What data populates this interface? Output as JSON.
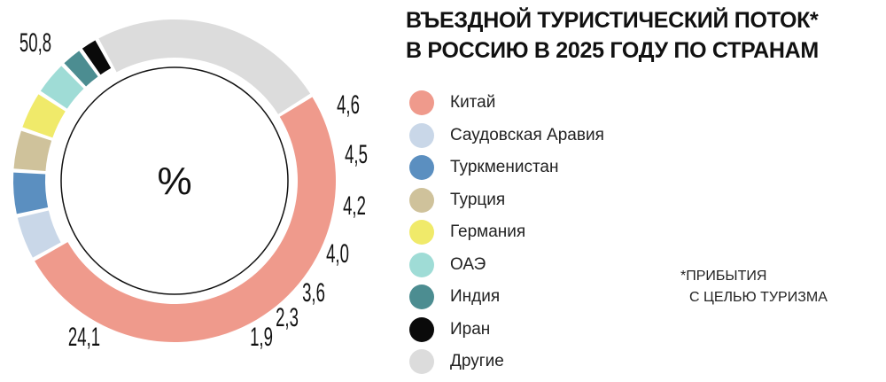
{
  "title_line1": "ВЪЕЗДНОЙ ТУРИСТИЧЕСКИЙ ПОТОК*",
  "title_line2": "В РОССИЮ В 2025 ГОДУ ПО СТРАНАМ",
  "footnote_line1": "*ПРИБЫТИЯ",
  "footnote_line2": "С ЦЕЛЬЮ ТУРИЗМА",
  "chart_data": {
    "type": "pie",
    "center_label": "%",
    "categories": [
      "Китай",
      "Саудовская Аравия",
      "Туркменистан",
      "Турция",
      "Германия",
      "ОАЭ",
      "Индия",
      "Иран",
      "Другие"
    ],
    "values": [
      50.8,
      4.6,
      4.5,
      4.2,
      4.0,
      3.6,
      2.3,
      1.9,
      24.1
    ],
    "value_labels": [
      "50,8",
      "4,6",
      "4,5",
      "4,2",
      "4,0",
      "3,6",
      "2,3",
      "1,9",
      "24,1"
    ],
    "colors": [
      "#ef9a8c",
      "#c9d7e8",
      "#5b8fc0",
      "#cfc29b",
      "#f0ea6a",
      "#9fdcd6",
      "#4c8d91",
      "#0a0a0a",
      "#dcdcdc"
    ],
    "legend_position": "right"
  }
}
